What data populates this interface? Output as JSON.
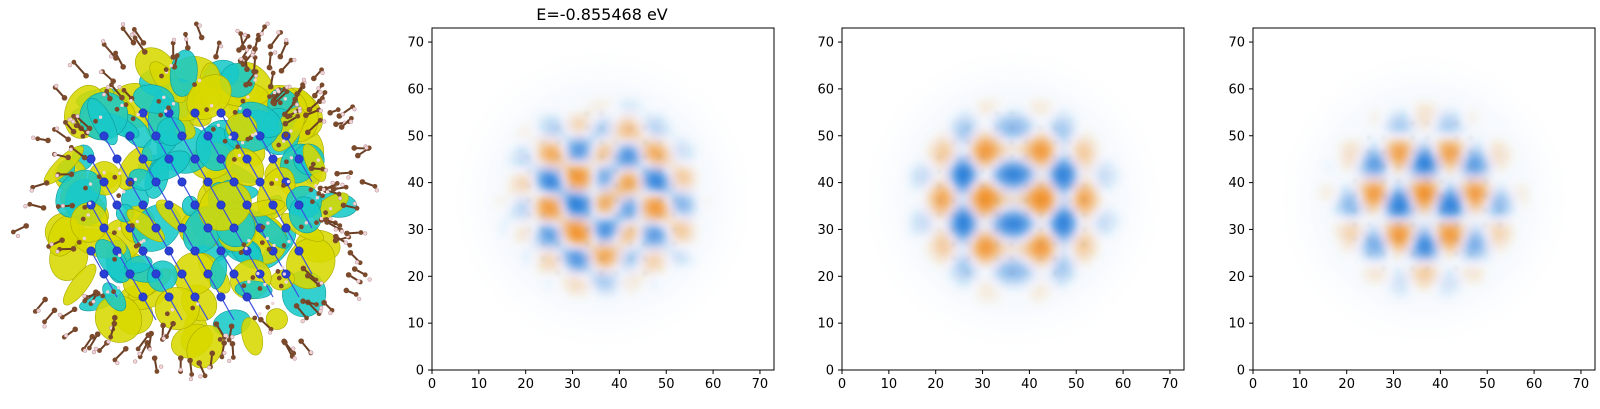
{
  "figure": {
    "title": "E=-0.855468 eV"
  },
  "molecule_render": {
    "description_icon": "molecule-isosurface",
    "colors": {
      "isosurface_positive": "#d8d800",
      "isosurface_negative": "#18c8c8",
      "nitrogen_atom": "#2a3fd6",
      "carbon_atom": "#7b4a2c",
      "hydrogen_atom": "#f0d4d8"
    }
  },
  "chart_data": [
    {
      "type": "heatmap",
      "title": "E=-0.855468 eV",
      "xlabel": "",
      "ylabel": "",
      "xlim": [
        0,
        73
      ],
      "ylim": [
        0,
        73
      ],
      "xticks": [
        0,
        10,
        20,
        30,
        40,
        50,
        60,
        70
      ],
      "yticks": [
        0,
        10,
        20,
        30,
        40,
        50,
        60,
        70
      ],
      "center": [
        36.5,
        36.5
      ],
      "extent_radius": 22,
      "pattern": "hex-lattice",
      "grid": false,
      "colors": {
        "positive": "#f28c1e",
        "negative": "#1f78d8",
        "zero": "#ffffff"
      }
    },
    {
      "type": "heatmap",
      "title": "",
      "xlabel": "",
      "ylabel": "",
      "xlim": [
        0,
        73
      ],
      "ylim": [
        0,
        73
      ],
      "xticks": [
        0,
        10,
        20,
        30,
        40,
        50,
        60,
        70
      ],
      "yticks": [
        0,
        10,
        20,
        30,
        40,
        50,
        60,
        70
      ],
      "center": [
        36.5,
        36.5
      ],
      "extent_radius": 22,
      "pattern": "diagonal-checker",
      "grid": false,
      "colors": {
        "positive": "#f28c1e",
        "negative": "#1f78d8",
        "zero": "#ffffff"
      }
    },
    {
      "type": "heatmap",
      "title": "",
      "xlabel": "",
      "ylabel": "",
      "xlim": [
        0,
        73
      ],
      "ylim": [
        0,
        73
      ],
      "xticks": [
        0,
        10,
        20,
        30,
        40,
        50,
        60,
        70
      ],
      "yticks": [
        0,
        10,
        20,
        30,
        40,
        50,
        60,
        70
      ],
      "center": [
        36.5,
        36.5
      ],
      "extent_radius": 21,
      "pattern": "vertical-bands",
      "grid": false,
      "colors": {
        "positive": "#f28c1e",
        "negative": "#1f78d8",
        "zero": "#ffffff"
      }
    }
  ]
}
